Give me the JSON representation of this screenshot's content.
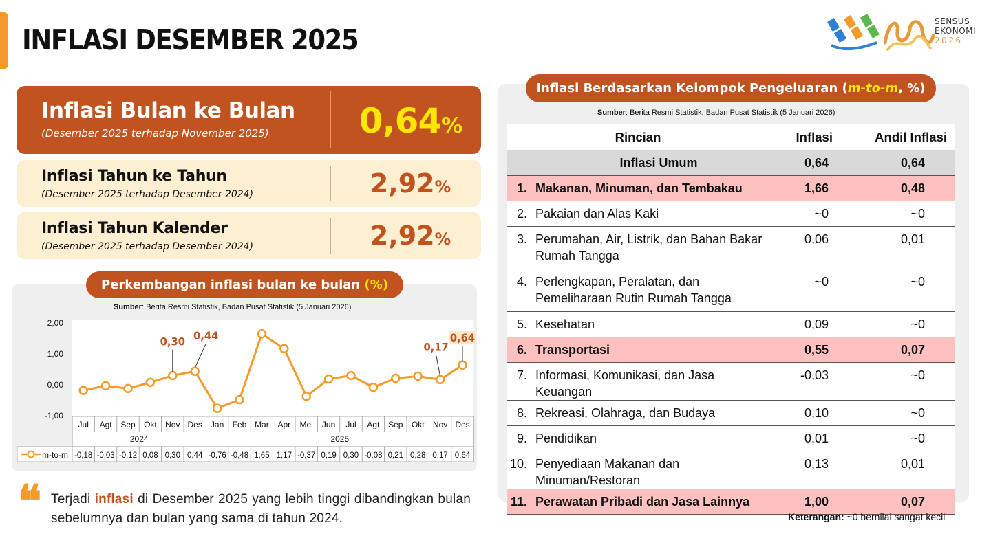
{
  "header": {
    "title": "INFLASI DESEMBER 2025",
    "logo_text_1": "SENSUS",
    "logo_text_2": "EKONOMI",
    "logo_text_3": "2026"
  },
  "kpis": [
    {
      "label": "Inflasi Bulan ke Bulan",
      "sub": "(Desember 2025 terhadap November 2025)",
      "value": "0,64",
      "unit": "%"
    },
    {
      "label": "Inflasi Tahun ke Tahun",
      "sub": "(Desember 2025 terhadap Desember 2024)",
      "value": "2,92",
      "unit": "%"
    },
    {
      "label": "Inflasi Tahun Kalender",
      "sub": "(Desember 2025 terhadap Desember 2024)",
      "value": "2,92",
      "unit": "%"
    }
  ],
  "chart_section": {
    "title_main": "Perkembangan inflasi bulan ke bulan ",
    "title_unit": "(%)",
    "source_label": "Sumber",
    "source_text": ": Berita Resmi Statistik, Badan Pusat Statistik (5 Januari 2026)"
  },
  "chart_data": {
    "type": "line",
    "categories": [
      "Jul",
      "Agt",
      "Sep",
      "Okt",
      "Nov",
      "Des",
      "Jan",
      "Feb",
      "Mar",
      "Apr",
      "Mei",
      "Jun",
      "Jul",
      "Agt",
      "Sep",
      "Okt",
      "Nov",
      "Des"
    ],
    "year_groups": [
      {
        "label": "2024",
        "start": 0,
        "end": 5
      },
      {
        "label": "2025",
        "start": 6,
        "end": 17
      }
    ],
    "series": [
      {
        "name": "m-to-m",
        "values": [
          -0.18,
          -0.03,
          -0.12,
          0.08,
          0.3,
          0.44,
          -0.76,
          -0.48,
          1.65,
          1.17,
          -0.37,
          0.19,
          0.3,
          -0.08,
          0.21,
          0.28,
          0.17,
          0.64
        ]
      }
    ],
    "table_row_labels": [
      "-0,18",
      "-0,03",
      "-0,12",
      "0,08",
      "0,30",
      "0,44",
      "-0,76",
      "-0,48",
      "1,65",
      "1,17",
      "-0,37",
      "0,19",
      "0,30",
      "-0,08",
      "0,21",
      "0,28",
      "0,17",
      "0,64"
    ],
    "y_ticks": [
      "2,00",
      "1,00",
      "0,00",
      "-1,00"
    ],
    "ylim": [
      -1,
      2
    ],
    "annotations": [
      {
        "index": 4,
        "text": "0,30"
      },
      {
        "index": 5,
        "text": "0,44"
      },
      {
        "index": 16,
        "text": "0,17"
      },
      {
        "index": 17,
        "text": "0,64"
      }
    ],
    "line_color": "#f39a2b",
    "label_color": "#c0531f"
  },
  "table_section": {
    "title_a": "Inflasi Berdasarkan Kelompok Pengeluaran (",
    "title_em": "m-to-m",
    "title_b": ", %)",
    "source_label": "Sumber",
    "source_text": ": Berita Resmi Statistik, Badan Pusat Statistik (5 Januari 2026)",
    "headers": {
      "rincian": "Rincian",
      "inflasi": "Inflasi",
      "andil": "Andil Inflasi"
    },
    "umum": {
      "name": "Inflasi Umum",
      "inflasi": "0,64",
      "andil": "0,64"
    },
    "rows": [
      {
        "num": "1.",
        "name": "Makanan, Minuman, dan Tembakau",
        "inflasi": "1,66",
        "andil": "0,48"
      },
      {
        "num": "2.",
        "name": "Pakaian dan Alas Kaki",
        "inflasi": "~0",
        "andil": "~0"
      },
      {
        "num": "3.",
        "name": "Perumahan, Air, Listrik, dan Bahan Bakar Rumah Tangga",
        "inflasi": "0,06",
        "andil": "0,01"
      },
      {
        "num": "4.",
        "name": "Perlengkapan, Peralatan, dan Pemeliharaan Rutin Rumah Tangga",
        "inflasi": "~0",
        "andil": "~0"
      },
      {
        "num": "5.",
        "name": "Kesehatan",
        "inflasi": "0,09",
        "andil": "~0"
      },
      {
        "num": "6.",
        "name": "Transportasi",
        "inflasi": "0,55",
        "andil": "0,07"
      },
      {
        "num": "7.",
        "name": "Informasi, Komunikasi, dan Jasa Keuangan",
        "inflasi": "-0,03",
        "andil": "~0"
      },
      {
        "num": "8.",
        "name": "Rekreasi, Olahraga, dan Budaya",
        "inflasi": "0,10",
        "andil": "~0"
      },
      {
        "num": "9.",
        "name": "Pendidikan",
        "inflasi": "0,01",
        "andil": "~0"
      },
      {
        "num": "10.",
        "name": "Penyediaan Makanan dan Minuman/Restoran",
        "inflasi": "0,13",
        "andil": "0,01"
      },
      {
        "num": "11.",
        "name": "Perawatan Pribadi dan Jasa Lainnya",
        "inflasi": "1,00",
        "andil": "0,07"
      }
    ],
    "highlight_color": "#ffc0c0",
    "note_label": "Keterangan:",
    "note_text": " ~0 bernilai sangat kecil"
  },
  "quote": {
    "mark": "❝",
    "text_a": "Terjadi ",
    "text_hl": "inflasi",
    "text_b": " di Desember 2025 yang lebih tinggi dibandingkan bulan sebelumnya dan bulan yang sama di tahun 2024."
  },
  "colors": {
    "brand_dark": "#c0531f",
    "brand_orange": "#f39a2b",
    "kpi_light": "#fdefd2",
    "highlight_yellow": "#ffe600"
  }
}
